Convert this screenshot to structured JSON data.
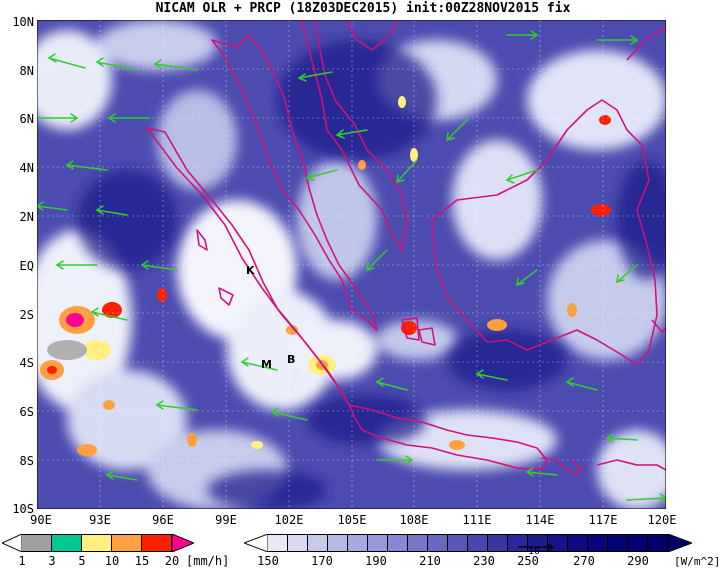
{
  "title": "NICAM OLR + PRCP (18Z03DEC2015) init:00Z28NOV2015 fix",
  "map": {
    "lon_range": [
      90,
      120
    ],
    "lat_range": [
      -10,
      10
    ],
    "lat_labels": [
      "10N",
      "8N",
      "6N",
      "4N",
      "2N",
      "EQ",
      "2S",
      "4S",
      "6S",
      "8S",
      "10S"
    ],
    "lon_labels": [
      "90E",
      "93E",
      "96E",
      "99E",
      "102E",
      "105E",
      "108E",
      "111E",
      "114E",
      "117E",
      "120E"
    ],
    "markers": [
      "K",
      "M",
      "B"
    ],
    "colors": {
      "olr_dark": "#1c1c8c",
      "olr_mid": "#4c4cb0",
      "olr_light": "#d8dcf0",
      "coast": "#d0127a",
      "wind": "#33cc33"
    }
  },
  "legend_prcp": {
    "ticks": [
      "1",
      "3",
      "5",
      "10",
      "15",
      "20"
    ],
    "unit": "[mm/h]",
    "colors": [
      "#ffffff",
      "#a0a0a0",
      "#00c890",
      "#fff080",
      "#ffa040",
      "#ff2000",
      "#ff0090"
    ]
  },
  "legend_olr": {
    "ticks": [
      "150",
      "170",
      "190",
      "210",
      "230",
      "250",
      "270",
      "290"
    ],
    "unit": "[W/m^2]",
    "ref_vector": "10",
    "colors": [
      "#ffffff",
      "#e8e8f8",
      "#d0d0f0",
      "#b8b8e8",
      "#a0a0dc",
      "#8888d0",
      "#7070c4",
      "#5858b8",
      "#4040a8",
      "#282898",
      "#101088"
    ]
  }
}
